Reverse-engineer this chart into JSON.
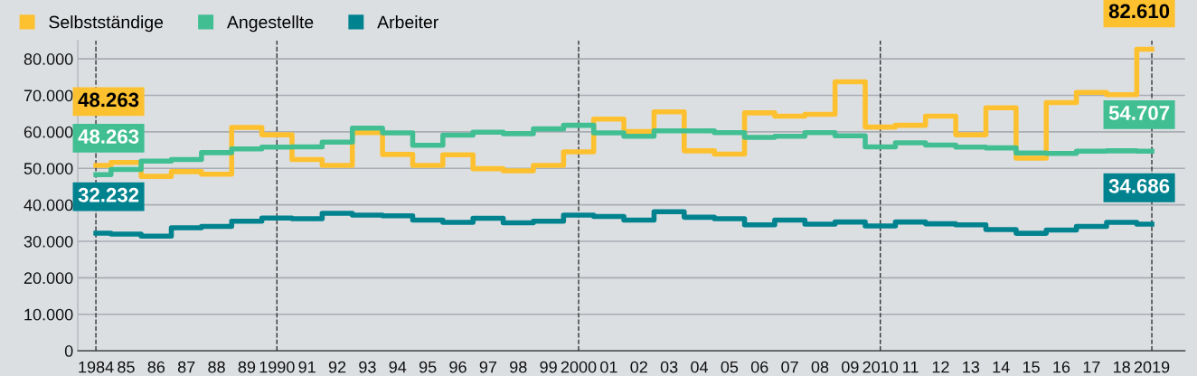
{
  "chart_data": {
    "type": "step",
    "x": [
      1984,
      1985,
      1986,
      1987,
      1988,
      1989,
      1990,
      1991,
      1992,
      1993,
      1994,
      1995,
      1996,
      1997,
      1998,
      1999,
      2000,
      2001,
      2002,
      2003,
      2004,
      2005,
      2006,
      2007,
      2008,
      2009,
      2010,
      2011,
      2012,
      2013,
      2014,
      2015,
      2016,
      2017,
      2018,
      2019
    ],
    "series": [
      {
        "name": "Selbstständige",
        "color": "#fdc130",
        "values": [
          50800,
          51600,
          47800,
          49100,
          48400,
          61200,
          59200,
          52400,
          50800,
          59800,
          53800,
          50800,
          53700,
          49900,
          49300,
          50800,
          54500,
          63500,
          60100,
          65500,
          54800,
          53900,
          65200,
          64300,
          64800,
          73700,
          61300,
          61800,
          64300,
          59200,
          66600,
          52800,
          68000,
          70800,
          70200,
          82610
        ],
        "value_labels": [
          null,
          null,
          null,
          null,
          null,
          null,
          null,
          null,
          null,
          null,
          null,
          null,
          null,
          null,
          null,
          null,
          null,
          null,
          null,
          null,
          null,
          null,
          null,
          null,
          null,
          null,
          null,
          null,
          null,
          null,
          null,
          null,
          null,
          null,
          null,
          "82.610"
        ]
      },
      {
        "name": "Angestellte",
        "color": "#41bf93",
        "values": [
          48263,
          49700,
          52000,
          52400,
          54300,
          55300,
          55800,
          55900,
          57200,
          61000,
          59700,
          56300,
          59100,
          59900,
          59500,
          60800,
          61800,
          59700,
          58800,
          60300,
          60300,
          59800,
          58500,
          58800,
          59800,
          58900,
          55900,
          57000,
          56400,
          55800,
          55600,
          54200,
          54100,
          54700,
          54800,
          54707
        ],
        "value_labels": [
          "48.263",
          null,
          null,
          null,
          null,
          null,
          null,
          null,
          null,
          null,
          null,
          null,
          null,
          null,
          null,
          null,
          null,
          null,
          null,
          null,
          null,
          null,
          null,
          null,
          null,
          null,
          null,
          null,
          null,
          null,
          null,
          null,
          null,
          null,
          null,
          "54.707"
        ]
      },
      {
        "name": "Arbeiter",
        "color": "#00838f",
        "values": [
          32232,
          32000,
          31400,
          33700,
          34100,
          35500,
          36400,
          36200,
          37700,
          37200,
          37000,
          35800,
          35200,
          36300,
          35100,
          35500,
          37200,
          36800,
          35800,
          38100,
          36600,
          36200,
          34500,
          35800,
          34700,
          35300,
          34200,
          35300,
          34800,
          34500,
          33200,
          32200,
          33100,
          34100,
          35200,
          34686
        ],
        "value_labels": [
          "32.232",
          null,
          null,
          null,
          null,
          null,
          null,
          null,
          null,
          null,
          null,
          null,
          null,
          null,
          null,
          null,
          null,
          null,
          null,
          null,
          null,
          null,
          null,
          null,
          null,
          null,
          null,
          null,
          null,
          null,
          null,
          null,
          null,
          null,
          null,
          "34.686"
        ]
      }
    ],
    "annotations": [
      "48.263"
    ],
    "xlim": [
      1983.4,
      2020.1
    ],
    "xticks": [
      {
        "value": 1984,
        "label": "1984"
      },
      {
        "value": 1985,
        "label": "85"
      },
      {
        "value": 1986,
        "label": "86"
      },
      {
        "value": 1987,
        "label": "87"
      },
      {
        "value": 1988,
        "label": "88"
      },
      {
        "value": 1989,
        "label": "89"
      },
      {
        "value": 1990,
        "label": "1990"
      },
      {
        "value": 1991,
        "label": "91"
      },
      {
        "value": 1992,
        "label": "92"
      },
      {
        "value": 1993,
        "label": "93"
      },
      {
        "value": 1994,
        "label": "94"
      },
      {
        "value": 1995,
        "label": "95"
      },
      {
        "value": 1996,
        "label": "96"
      },
      {
        "value": 1997,
        "label": "97"
      },
      {
        "value": 1998,
        "label": "98"
      },
      {
        "value": 1999,
        "label": "99"
      },
      {
        "value": 2000,
        "label": "2000"
      },
      {
        "value": 2001,
        "label": "01"
      },
      {
        "value": 2002,
        "label": "02"
      },
      {
        "value": 2003,
        "label": "03"
      },
      {
        "value": 2004,
        "label": "04"
      },
      {
        "value": 2005,
        "label": "05"
      },
      {
        "value": 2006,
        "label": "06"
      },
      {
        "value": 2007,
        "label": "07"
      },
      {
        "value": 2008,
        "label": "08"
      },
      {
        "value": 2009,
        "label": "09"
      },
      {
        "value": 2010,
        "label": "2010"
      },
      {
        "value": 2011,
        "label": "11"
      },
      {
        "value": 2012,
        "label": "12"
      },
      {
        "value": 2013,
        "label": "13"
      },
      {
        "value": 2014,
        "label": "14"
      },
      {
        "value": 2015,
        "label": "15"
      },
      {
        "value": 2016,
        "label": "16"
      },
      {
        "value": 2017,
        "label": "17"
      },
      {
        "value": 2018,
        "label": "18"
      },
      {
        "value": 2019,
        "label": "2019"
      }
    ],
    "ylim": [
      0,
      85000
    ],
    "yticks": [
      0,
      {
        "value": 10000,
        "label": "10.000"
      },
      {
        "value": 20000,
        "label": "20.000"
      },
      {
        "value": 30000,
        "label": "30.000"
      },
      {
        "value": 40000,
        "label": "40.000"
      },
      {
        "value": 50000,
        "label": "50.000"
      },
      {
        "value": 60000,
        "label": "60.000"
      },
      {
        "value": 70000,
        "label": "70.000"
      },
      {
        "value": 80000,
        "label": "80.000"
      }
    ],
    "ref_lines": [
      {
        "axis": "x",
        "value": 1984,
        "color": "#333333",
        "line_style": "dashed"
      },
      {
        "axis": "x",
        "value": 1990,
        "color": "#333333",
        "line_style": "dashed"
      },
      {
        "axis": "x",
        "value": 2000,
        "color": "#333333",
        "line_style": "dashed"
      },
      {
        "axis": "x",
        "value": 2010,
        "color": "#333333",
        "line_style": "dashed"
      },
      {
        "axis": "x",
        "value": 2019,
        "color": "#333333",
        "line_style": "dashed"
      }
    ],
    "grid": "y",
    "legend": "top left",
    "marker": "none",
    "line_style": "solid"
  }
}
